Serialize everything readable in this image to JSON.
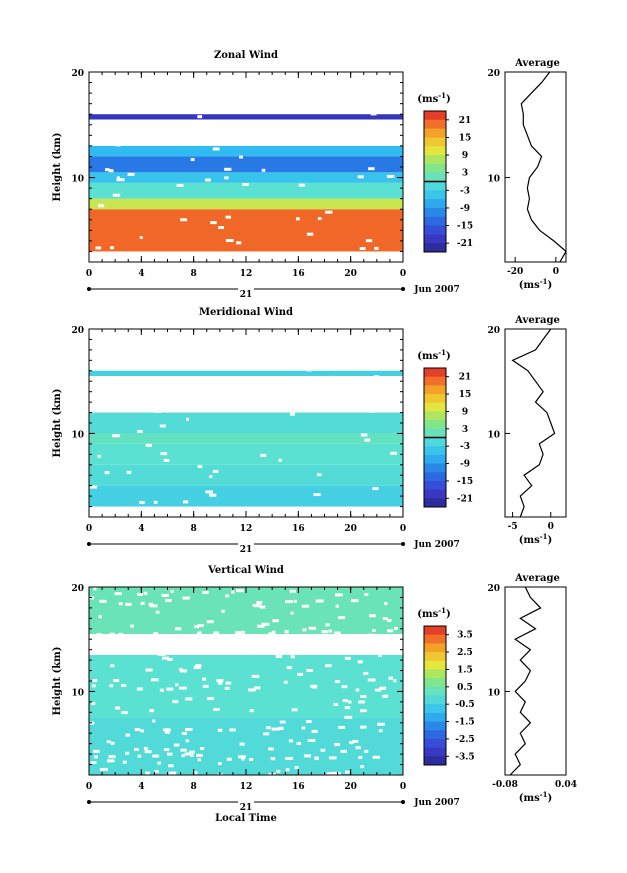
{
  "chart_data": [
    {
      "type": "heatmap",
      "title": "Zonal Wind",
      "ylabel": "Height (km)",
      "xlabel": "",
      "x_ticks": [
        "0",
        "4",
        "8",
        "12",
        "16",
        "20",
        "0"
      ],
      "y_ticks": [
        "20",
        "10"
      ],
      "date_label": "21",
      "month_label": "Jun 2007",
      "xlim": [
        0,
        24
      ],
      "ylim": [
        2,
        20
      ],
      "colorbar": {
        "unit": "(ms",
        "unit_sup": "-1",
        "unit_close": ")",
        "ticks": [
          "21",
          "15",
          "9",
          "3",
          "-3",
          "-9",
          "-15",
          "-21"
        ],
        "range": [
          -24,
          24
        ]
      },
      "rows": [
        {
          "z": [
            3.0,
            7.0
          ],
          "value": 20
        },
        {
          "z": [
            7.0,
            8.0
          ],
          "value": 9
        },
        {
          "z": [
            8.0,
            9.5
          ],
          "value": 0
        },
        {
          "z": [
            9.5,
            10.5
          ],
          "value": -5
        },
        {
          "z": [
            10.5,
            12.0
          ],
          "value": -12
        },
        {
          "z": [
            12.0,
            13.0
          ],
          "value": -6
        },
        {
          "z": [
            15.5,
            16.0
          ],
          "value": -20
        }
      ],
      "average": {
        "title": "Average",
        "unit": "(ms",
        "unit_sup": "-1",
        "unit_close": ")",
        "x_ticks": [
          "-20",
          "0"
        ],
        "y_ticks": [
          "20",
          "10"
        ],
        "xlim": [
          -25,
          5
        ],
        "z": [
          2,
          3,
          4,
          5,
          6,
          7,
          8,
          9,
          10,
          11,
          12,
          13,
          14,
          15,
          16,
          17,
          18,
          19,
          20
        ],
        "x": [
          2,
          5,
          -1,
          -8,
          -12,
          -14,
          -13,
          -14,
          -13,
          -9,
          -7,
          -12,
          -14,
          -16,
          -16,
          -17,
          -12,
          -7,
          -3
        ]
      }
    },
    {
      "type": "heatmap",
      "title": "Meridional Wind",
      "ylabel": "Height (km)",
      "xlabel": "",
      "x_ticks": [
        "0",
        "4",
        "8",
        "12",
        "16",
        "20",
        "0"
      ],
      "y_ticks": [
        "20",
        "10"
      ],
      "date_label": "21",
      "month_label": "Jun 2007",
      "xlim": [
        0,
        24
      ],
      "ylim": [
        2,
        20
      ],
      "colorbar": {
        "unit": "(ms",
        "unit_sup": "-1",
        "unit_close": ")",
        "ticks": [
          "21",
          "15",
          "9",
          "3",
          "-3",
          "-9",
          "-15",
          "-21"
        ],
        "range": [
          -24,
          24
        ]
      },
      "rows": [
        {
          "z": [
            3.0,
            5.0
          ],
          "value": -3
        },
        {
          "z": [
            5.0,
            7.0
          ],
          "value": -1
        },
        {
          "z": [
            7.0,
            9.0
          ],
          "value": 0
        },
        {
          "z": [
            9.0,
            10.0
          ],
          "value": 1
        },
        {
          "z": [
            10.0,
            12.0
          ],
          "value": -1
        },
        {
          "z": [
            15.5,
            16.0
          ],
          "value": -3
        }
      ],
      "average": {
        "title": "Average",
        "unit": "(ms",
        "unit_sup": "-1",
        "unit_close": ")",
        "x_ticks": [
          "-5",
          "0"
        ],
        "y_ticks": [
          "20",
          "10"
        ],
        "xlim": [
          -6,
          2
        ],
        "z": [
          2,
          3,
          4,
          5,
          6,
          7,
          8,
          9,
          10,
          11,
          12,
          13,
          14,
          15,
          16,
          17,
          18,
          19,
          20
        ],
        "x": [
          -4,
          -3.5,
          -4,
          -2.5,
          -3.5,
          -1.5,
          -1,
          -1.5,
          0.5,
          0,
          -0.5,
          -2,
          -1,
          -2,
          -3,
          -5,
          -2,
          -1,
          0
        ]
      }
    },
    {
      "type": "heatmap",
      "title": "Vertical Wind",
      "ylabel": "Height (km)",
      "xlabel": "Local Time",
      "x_ticks": [
        "0",
        "4",
        "8",
        "12",
        "16",
        "20",
        "0"
      ],
      "y_ticks": [
        "20",
        "10"
      ],
      "date_label": "21",
      "month_label": "Jun 2007",
      "xlim": [
        0,
        24
      ],
      "ylim": [
        2,
        20
      ],
      "colorbar": {
        "unit": "(ms",
        "unit_sup": "-1",
        "unit_close": ")",
        "ticks": [
          "3.5",
          "2.5",
          "1.5",
          "0.5",
          "-0.5",
          "-1.5",
          "-2.5",
          "-3.5"
        ],
        "range": [
          -4,
          4
        ]
      },
      "rows": [
        {
          "z": [
            2.0,
            7.5
          ],
          "value": -0.2
        },
        {
          "z": [
            7.5,
            13.5
          ],
          "value": 0.0
        },
        {
          "z": [
            15.5,
            20.0
          ],
          "value": 0.3
        }
      ],
      "average": {
        "title": "Average",
        "unit": "(ms",
        "unit_sup": "-1",
        "unit_close": ")",
        "x_ticks": [
          "-0.08",
          "0.04"
        ],
        "y_ticks": [
          "20",
          "10"
        ],
        "xlim": [
          -0.08,
          0.04
        ],
        "z": [
          2,
          3,
          4,
          5,
          6,
          7,
          8,
          9,
          10,
          11,
          12,
          13,
          14,
          15,
          16,
          17,
          18,
          19,
          20
        ],
        "x": [
          -0.07,
          -0.05,
          -0.06,
          -0.04,
          -0.05,
          -0.03,
          -0.05,
          -0.04,
          -0.06,
          -0.04,
          -0.03,
          -0.05,
          -0.03,
          -0.06,
          -0.02,
          -0.05,
          -0.01,
          -0.03,
          -0.04
        ]
      }
    }
  ]
}
